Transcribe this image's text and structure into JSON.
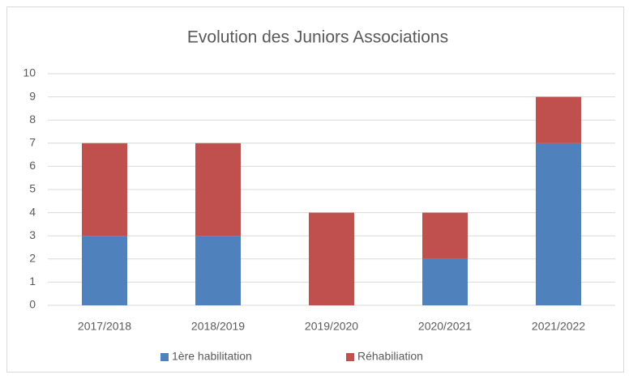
{
  "chart_data": {
    "type": "stacked_bar",
    "title": "Evolution des Juniors Associations",
    "categories": [
      "2017/2018",
      "2018/2019",
      "2019/2020",
      "2020/2021",
      "2021/2022"
    ],
    "series": [
      {
        "name": "1ère habilitation",
        "color": "#4f81bd",
        "values": [
          3,
          3,
          0,
          2,
          7
        ]
      },
      {
        "name": "Réhabiliation",
        "color": "#c0504d",
        "values": [
          4,
          4,
          4,
          2,
          2
        ]
      }
    ],
    "ylim": [
      0,
      10
    ],
    "yticks": [
      0,
      1,
      2,
      3,
      4,
      5,
      6,
      7,
      8,
      9,
      10
    ],
    "grid": true,
    "legend": "bottom"
  }
}
